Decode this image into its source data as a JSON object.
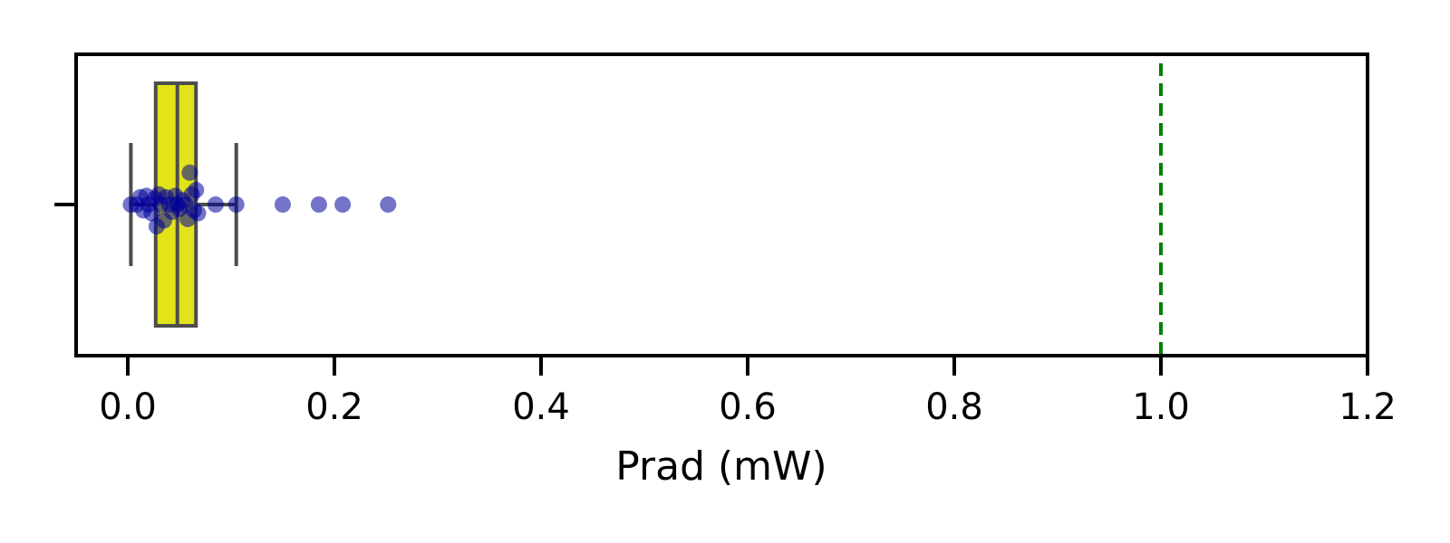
{
  "chart_data": {
    "type": "box",
    "orientation": "horizontal",
    "xlabel": "Prad (mW)",
    "xlim": [
      -0.05,
      1.2
    ],
    "xticks": [
      "0.0",
      "0.2",
      "0.4",
      "0.6",
      "0.8",
      "1.0",
      "1.2"
    ],
    "xtick_values": [
      0.0,
      0.2,
      0.4,
      0.6,
      0.8,
      1.0,
      1.2
    ],
    "box": {
      "whisker_low": 0.003,
      "q1": 0.027,
      "median": 0.048,
      "q3": 0.066,
      "whisker_high": 0.105,
      "color": "#e3e31a",
      "edge_color": "#4d4d4d"
    },
    "points": [
      {
        "x": 0.003,
        "y": 0.0
      },
      {
        "x": 0.009,
        "y": 0.0
      },
      {
        "x": 0.012,
        "y": 0.05
      },
      {
        "x": 0.015,
        "y": -0.04
      },
      {
        "x": 0.018,
        "y": 0.06
      },
      {
        "x": 0.02,
        "y": 0.0
      },
      {
        "x": 0.023,
        "y": -0.06
      },
      {
        "x": 0.026,
        "y": 0.04
      },
      {
        "x": 0.028,
        "y": -0.15
      },
      {
        "x": 0.03,
        "y": 0.07
      },
      {
        "x": 0.032,
        "y": 0.0
      },
      {
        "x": 0.035,
        "y": -0.11
      },
      {
        "x": 0.037,
        "y": 0.05
      },
      {
        "x": 0.04,
        "y": 0.0
      },
      {
        "x": 0.043,
        "y": -0.05
      },
      {
        "x": 0.046,
        "y": 0.06
      },
      {
        "x": 0.048,
        "y": 0.0
      },
      {
        "x": 0.05,
        "y": -0.03
      },
      {
        "x": 0.053,
        "y": 0.03
      },
      {
        "x": 0.056,
        "y": 0.0
      },
      {
        "x": 0.058,
        "y": -0.1
      },
      {
        "x": 0.06,
        "y": 0.22
      },
      {
        "x": 0.062,
        "y": 0.07
      },
      {
        "x": 0.064,
        "y": -0.04
      },
      {
        "x": 0.066,
        "y": 0.1
      },
      {
        "x": 0.068,
        "y": -0.06
      },
      {
        "x": 0.085,
        "y": 0.0
      },
      {
        "x": 0.105,
        "y": 0.0
      },
      {
        "x": 0.15,
        "y": 0.0
      },
      {
        "x": 0.185,
        "y": 0.0
      },
      {
        "x": 0.208,
        "y": 0.0
      },
      {
        "x": 0.252,
        "y": 0.0
      }
    ],
    "point_color": "#00009a",
    "threshold": {
      "x": 1.0,
      "color": "#008000",
      "style": "dashed"
    },
    "grid": false,
    "legend": "none"
  }
}
